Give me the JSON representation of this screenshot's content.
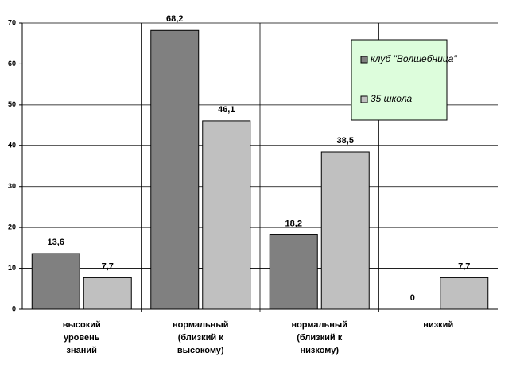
{
  "chart_data": {
    "type": "bar",
    "categories": [
      "высокий\nуровень\nзнаний",
      "нормальный\n(близкий к\nвысокому)",
      "нормальный\n(близкий к\nнизкому)",
      "низкий"
    ],
    "series": [
      {
        "name": "клуб \"Волшебница\"",
        "color": "#808080",
        "values": [
          13.6,
          68.2,
          18.2,
          0
        ],
        "value_labels": [
          "13,6",
          "68,2",
          "18,2",
          "0"
        ]
      },
      {
        "name": "35 школа",
        "color": "#c0c0c0",
        "values": [
          7.7,
          46.1,
          38.5,
          7.7
        ],
        "value_labels": [
          "7,7",
          "46,1",
          "38,5",
          "7,7"
        ]
      }
    ],
    "ylim": [
      0,
      70
    ],
    "yticks": [
      0,
      10,
      20,
      30,
      40,
      50,
      60,
      70
    ],
    "grid": true,
    "legend": "upper right"
  }
}
